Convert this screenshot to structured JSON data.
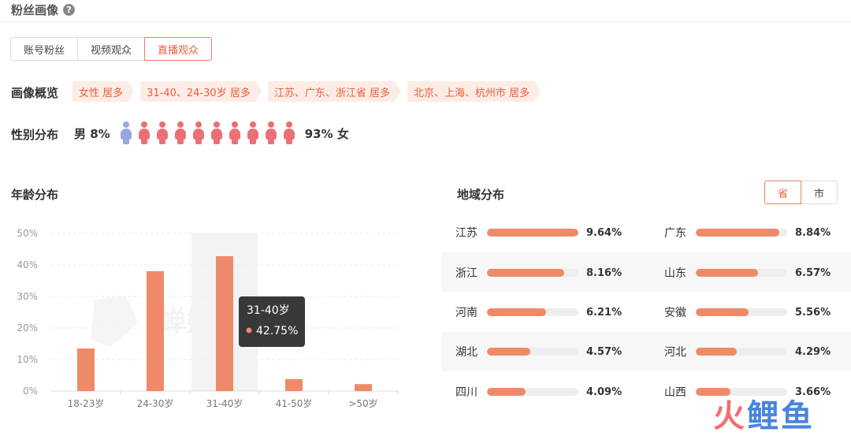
{
  "header": {
    "title": "粉丝画像",
    "help_icon": "?"
  },
  "tabs": [
    {
      "label": "账号粉丝",
      "active": false
    },
    {
      "label": "视频观众",
      "active": false
    },
    {
      "label": "直播观众",
      "active": true
    }
  ],
  "overview": {
    "label": "画像概览",
    "tags": [
      "女性 居多",
      "31-40、24-30岁 居多",
      "江苏、广东、浙江省 居多",
      "北京、上海、杭州市 居多"
    ]
  },
  "gender": {
    "label": "性别分布",
    "male_text": "男 8%",
    "female_text": "93% 女",
    "male_share": 8,
    "female_share": 93,
    "icons_male": 1,
    "icons_female": 9,
    "colors": {
      "male": "#9aa6e0",
      "female": "#ec6f78"
    }
  },
  "age": {
    "label": "年龄分布"
  },
  "chart_data": {
    "type": "bar",
    "categories": [
      "18-23岁",
      "24-30岁",
      "31-40岁",
      "41-50岁",
      ">50岁"
    ],
    "values": [
      13.5,
      38,
      42.75,
      3.8,
      2.2
    ],
    "y_tick_labels": [
      "0%",
      "10%",
      "20%",
      "30%",
      "40%",
      "50%"
    ],
    "ylim": [
      0,
      50
    ],
    "grid": true,
    "highlight_index": 2,
    "tooltip": {
      "title": "31-40岁",
      "value": "42.75%"
    },
    "bar_color": "#ef8a69",
    "watermark": "蝉妈妈"
  },
  "region": {
    "label": "地域分布",
    "toggle": [
      {
        "label": "省",
        "active": true
      },
      {
        "label": "市",
        "active": false
      }
    ],
    "items": [
      {
        "name": "江苏",
        "value": "9.64%",
        "pct": 9.64
      },
      {
        "name": "广东",
        "value": "8.84%",
        "pct": 8.84
      },
      {
        "name": "浙江",
        "value": "8.16%",
        "pct": 8.16
      },
      {
        "name": "山东",
        "value": "6.57%",
        "pct": 6.57
      },
      {
        "name": "河南",
        "value": "6.21%",
        "pct": 6.21
      },
      {
        "name": "安徽",
        "value": "5.56%",
        "pct": 5.56
      },
      {
        "name": "湖北",
        "value": "4.57%",
        "pct": 4.57
      },
      {
        "name": "河北",
        "value": "4.29%",
        "pct": 4.29
      },
      {
        "name": "四川",
        "value": "4.09%",
        "pct": 4.09
      },
      {
        "name": "山西",
        "value": "3.66%",
        "pct": 3.66
      }
    ],
    "max_pct": 9.64,
    "bar_color": "#ef8a69"
  },
  "watermark_logo": {
    "chars": [
      "火",
      "鲤",
      "鱼"
    ],
    "colors": [
      "#f2545b",
      "#2a6fdb",
      "#2a6fdb"
    ]
  }
}
